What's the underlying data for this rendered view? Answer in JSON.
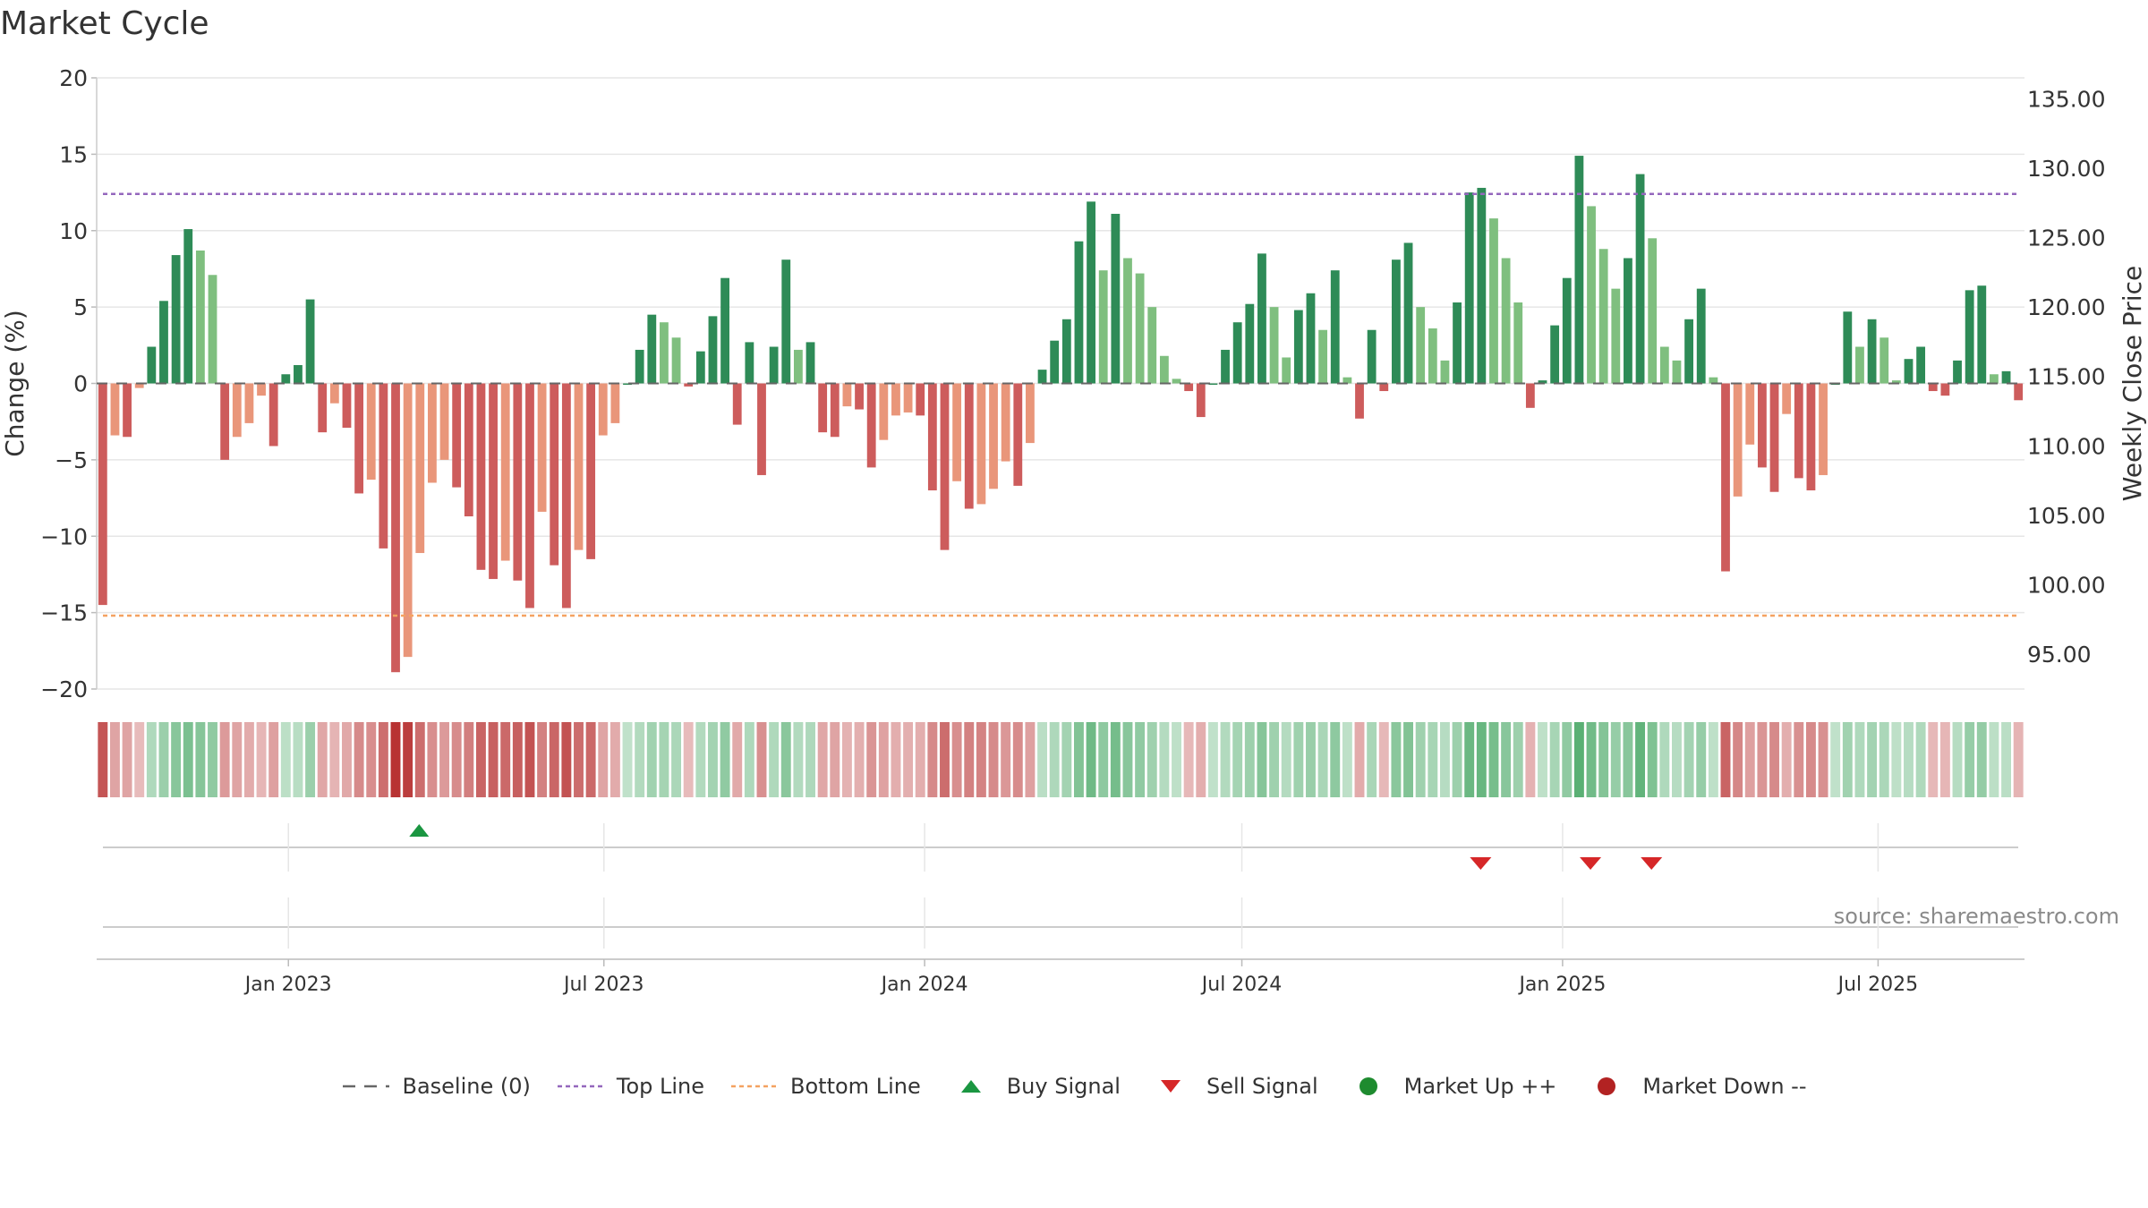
{
  "chart_data": {
    "type": "bar",
    "title": "Market Cycle",
    "ylabel": "Change (%)",
    "y2label": "Weekly Close Price",
    "ylim": [
      -20,
      20
    ],
    "yticks": [
      "20",
      "15",
      "10",
      "5",
      "0",
      "−5",
      "−10",
      "−15",
      "−20"
    ],
    "y2ticks": [
      "135.00",
      "130.00",
      "125.00",
      "120.00",
      "115.00",
      "110.00",
      "105.00",
      "100.00",
      "95.00"
    ],
    "y2lim": [
      92.5,
      136.5
    ],
    "top_line": 12.4,
    "bottom_line": -15.2,
    "x_start": "2022-09-13",
    "x_end": "2025-09-23",
    "xticks": [
      {
        "label": "Jan 2023",
        "date": "2023-01-01"
      },
      {
        "label": "Jul 2023",
        "date": "2023-07-01"
      },
      {
        "label": "Jan 2024",
        "date": "2024-01-01"
      },
      {
        "label": "Jul 2024",
        "date": "2024-07-01"
      },
      {
        "label": "Jan 2025",
        "date": "2025-01-01"
      },
      {
        "label": "Jul 2025",
        "date": "2025-07-01"
      }
    ],
    "series": [
      {
        "name": "Weekly Change (%)",
        "values": [
          -14.5,
          -3.4,
          -3.5,
          -0.3,
          2.4,
          5.4,
          8.4,
          10.1,
          8.7,
          7.1,
          -5,
          -3.5,
          -2.6,
          -0.8,
          -4.1,
          0.6,
          1.2,
          5.5,
          -3.2,
          -1.3,
          -2.9,
          -7.2,
          -6.3,
          -10.8,
          -18.9,
          -17.9,
          -11.1,
          -6.5,
          -5,
          -6.8,
          -8.7,
          -12.2,
          -12.8,
          -11.6,
          -12.9,
          -14.7,
          -8.4,
          -11.9,
          -14.7,
          -10.9,
          -11.5,
          -3.4,
          -2.6,
          0,
          2.2,
          4.5,
          4.0,
          3.0,
          -0.2,
          2.1,
          4.4,
          6.9,
          -2.7,
          2.7,
          -6,
          2.4,
          8.1,
          2.2,
          2.7,
          -3.2,
          -3.5,
          -1.5,
          -1.7,
          -5.5,
          -3.7,
          -2.1,
          -1.9,
          -2.1,
          -7,
          -10.9,
          -6.4,
          -8.2,
          -7.9,
          -6.9,
          -5.1,
          -6.7,
          -3.9,
          0.9,
          2.8,
          4.2,
          9.3,
          11.9,
          7.4,
          11.1,
          8.2,
          7.2,
          5.0,
          1.8,
          0.3,
          -0.5,
          -2.2,
          0,
          2.2,
          4.0,
          5.2,
          8.5,
          5.0,
          1.7,
          4.8,
          5.9,
          3.5,
          7.4,
          0.4,
          -2.3,
          3.5,
          -0.5,
          8.1,
          9.2,
          5.0,
          3.6,
          1.5,
          5.3,
          12.5,
          12.8,
          10.8,
          8.2,
          5.3,
          -1.6,
          0.2,
          3.8,
          6.9,
          14.9,
          11.6,
          8.8,
          6.2,
          8.2,
          13.7,
          9.5,
          2.4,
          1.5,
          4.2,
          6.2,
          0.4,
          -12.3,
          -7.4,
          -4,
          -5.5,
          -7.1,
          -2,
          -6.2,
          -7,
          -6,
          0,
          4.7,
          2.4,
          4.2,
          3.0,
          0.2,
          1.6,
          2.4,
          -0.5,
          -0.8,
          1.5,
          6.1,
          6.4,
          0.6,
          0.8,
          -1.1
        ]
      }
    ],
    "signals": [
      {
        "type": "buy",
        "date": "2023-03-17"
      },
      {
        "type": "sell",
        "date": "2024-11-15"
      },
      {
        "type": "sell",
        "date": "2025-01-17"
      },
      {
        "type": "sell",
        "date": "2025-02-21"
      }
    ],
    "legend": [
      {
        "label": "Baseline (0)",
        "symbol": "dash",
        "color": "#666666"
      },
      {
        "label": "Top Line",
        "symbol": "dot-line",
        "color": "#9467bd"
      },
      {
        "label": "Bottom Line",
        "symbol": "dot-line",
        "color": "#f4a261"
      },
      {
        "label": "Buy Signal",
        "symbol": "triangle-up",
        "color": "#1a9641"
      },
      {
        "label": "Sell Signal",
        "symbol": "triangle-down",
        "color": "#d62728"
      },
      {
        "label": "Market Up ++",
        "symbol": "circle",
        "color": "#1e8b2f"
      },
      {
        "label": "Market Down --",
        "symbol": "circle",
        "color": "#b22222"
      }
    ],
    "source": "source: sharemaestro.com",
    "colors": {
      "up_strong": "#2e8b57",
      "up_weak": "#7fbf7f",
      "down_strong": "#cd5c5c",
      "down_weak": "#e9967a",
      "grid": "#e6e6e6",
      "axis": "#cccccc"
    }
  }
}
